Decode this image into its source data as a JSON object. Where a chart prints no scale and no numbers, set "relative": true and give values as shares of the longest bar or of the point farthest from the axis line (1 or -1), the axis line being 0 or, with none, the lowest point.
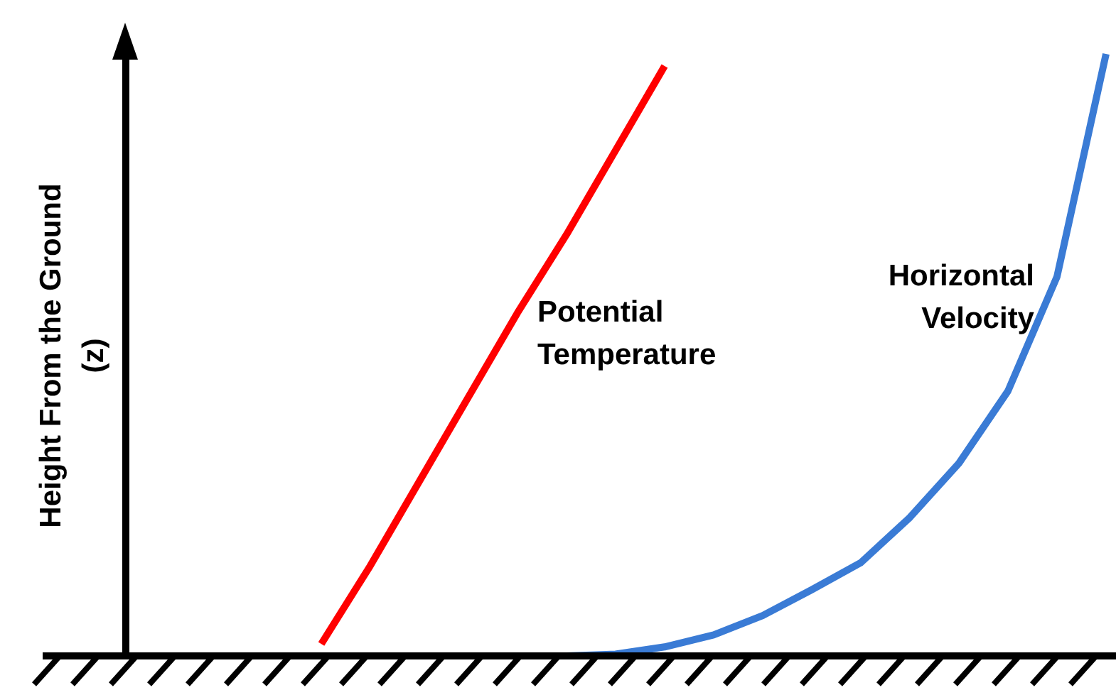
{
  "chart_data": {
    "type": "line",
    "relative": true,
    "ylabel": "Height From the Ground (z)",
    "legend": false,
    "grid": false,
    "marker": "none",
    "line_style": "solid",
    "categories": [
      null,
      null,
      null,
      null,
      null,
      null,
      null,
      null,
      null,
      null,
      null,
      null,
      null,
      null,
      null,
      null,
      null,
      null,
      null,
      null,
      null
    ],
    "series": [
      {
        "name": "Potential Temperature",
        "color": "#ff0000",
        "values": [
          null,
          null,
          null,
          null,
          0.02,
          0.15,
          0.29,
          0.43,
          0.57,
          0.7,
          0.84,
          0.98,
          null,
          null,
          null,
          null,
          null,
          null,
          null,
          null,
          null
        ]
      },
      {
        "name": "Horizontal Velocity",
        "color": "#3a7bd5",
        "values": [
          null,
          null,
          null,
          null,
          null,
          null,
          null,
          null,
          null,
          0,
          0.003,
          0.015,
          0.035,
          0.067,
          0.11,
          0.155,
          0.23,
          0.32,
          0.44,
          0.63,
          1
        ]
      }
    ]
  }
}
